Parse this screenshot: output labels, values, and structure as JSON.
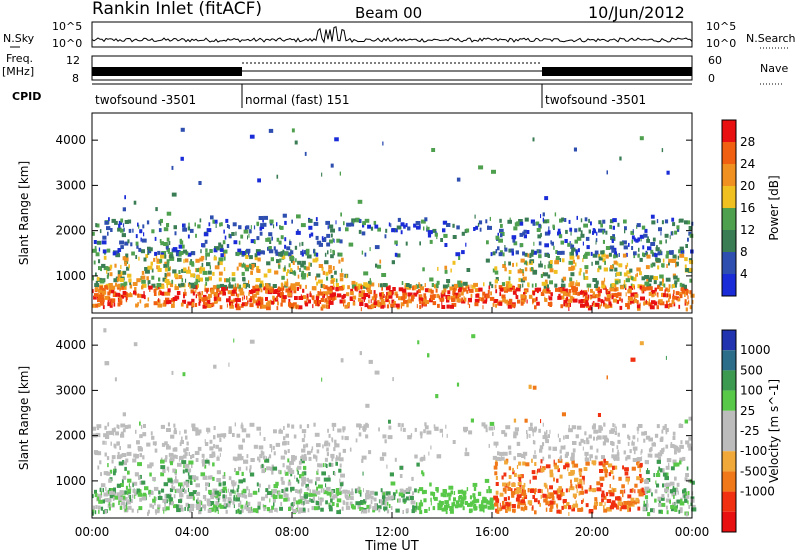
{
  "header": {
    "title": "Rankin Inlet (fitACF)",
    "beam": "Beam 00",
    "date": "10/Jun/2012"
  },
  "strip_labels": {
    "nsky": "N.Sky",
    "nsearch": "N.Search",
    "freq": "Freq.",
    "freq_unit": "[MHz]",
    "nave": "Nave",
    "cpid": "CPID"
  },
  "strip_ticks": {
    "noise_left_top": "10^5",
    "noise_left_bottom": "10^0",
    "noise_right_top": "10^5",
    "noise_right_bottom": "10^0",
    "freq_left_top": "12",
    "freq_left_bottom": "8",
    "nave_right_top": "60",
    "nave_right_bottom": "0"
  },
  "cpid_segments": [
    {
      "label": "twofsound -3501",
      "start_h": 0,
      "end_h": 6
    },
    {
      "label": "normal (fast) 151",
      "start_h": 6,
      "end_h": 18
    },
    {
      "label": "twofsound -3501",
      "start_h": 18,
      "end_h": 24
    }
  ],
  "colors": {
    "power": [
      "#1a2bd8",
      "#2f4fb0",
      "#3a7d55",
      "#4ea04e",
      "#f0c020",
      "#f09020",
      "#f06010",
      "#e81010"
    ],
    "velocity": [
      "#e81010",
      "#f03010",
      "#f07818",
      "#f0a838",
      "#bcbcbc",
      "#bcbcbc",
      "#58c848",
      "#3c9a50",
      "#2c6d8a",
      "#2233b0"
    ]
  },
  "chart_data": [
    {
      "type": "heatmap",
      "name": "power",
      "xlabel": "",
      "ylabel": "Slant Range [km]",
      "xlim": [
        0,
        24
      ],
      "ylim": [
        180,
        4600
      ],
      "yticks": [
        1000,
        2000,
        3000,
        4000
      ],
      "colorbar_label": "Power [dB]",
      "colorbar_ticks": [
        "4",
        "8",
        "12",
        "16",
        "20",
        "24",
        "28"
      ],
      "colorbar_range": [
        0,
        32
      ]
    },
    {
      "type": "heatmap",
      "name": "velocity",
      "xlabel": "Time UT",
      "ylabel": "Slant Range [km]",
      "xlim": [
        0,
        24
      ],
      "ylim": [
        180,
        4600
      ],
      "xticks": [
        "00:00",
        "04:00",
        "08:00",
        "12:00",
        "16:00",
        "20:00",
        "00:00"
      ],
      "yticks": [
        1000,
        2000,
        3000,
        4000
      ],
      "colorbar_label": "Velocity [m s^-1]",
      "colorbar_ticks": [
        "1000",
        "500",
        "100",
        "25",
        "-25",
        "-100",
        "-500",
        "-1000"
      ]
    }
  ]
}
